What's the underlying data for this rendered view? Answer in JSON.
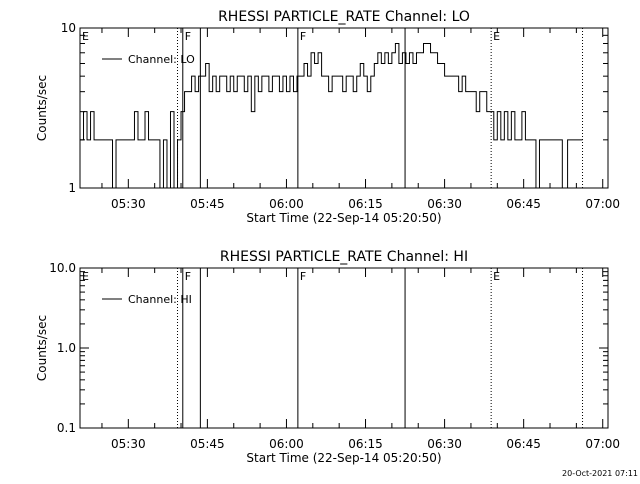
{
  "footer": {
    "timestamp": "20-Oct-2021 07:11"
  },
  "chart_data": [
    {
      "type": "line",
      "title": "RHESSI PARTICLE_RATE Channel: LO",
      "xlabel": "Start Time (22-Sep-14 05:20:50)",
      "ylabel": "Counts/sec",
      "x_unit": "time (HH:MM)",
      "xlim": [
        "05:20:50",
        "07:01:00"
      ],
      "ylim": [
        1,
        10
      ],
      "yscale": "log",
      "x_ticks": [
        "05:30",
        "05:45",
        "06:00",
        "06:15",
        "06:30",
        "06:45",
        "07:00"
      ],
      "y_ticks": [
        "1",
        "10"
      ],
      "legend": {
        "entries": [
          "Channel: LO"
        ],
        "placement": "top-left"
      },
      "grid": false,
      "markers": [
        {
          "label": "E",
          "time": "05:20:50",
          "style": "dotted"
        },
        {
          "label": "",
          "time": "05:39:20",
          "style": "dotted"
        },
        {
          "label": "F",
          "time": "05:40:20",
          "style": "solid"
        },
        {
          "label": "",
          "time": "05:43:40",
          "style": "solid"
        },
        {
          "label": "F",
          "time": "06:02:10",
          "style": "solid"
        },
        {
          "label": "",
          "time": "06:22:30",
          "style": "solid"
        },
        {
          "label": "E",
          "time": "06:38:50",
          "style": "dotted"
        },
        {
          "label": "",
          "time": "06:56:10",
          "style": "dotted"
        }
      ],
      "series": [
        {
          "name": "Channel: LO",
          "points": [
            [
              "05:20:50",
              2
            ],
            [
              "05:21:30",
              3
            ],
            [
              "05:22:10",
              2
            ],
            [
              "05:22:50",
              3
            ],
            [
              "05:23:30",
              2
            ],
            [
              "05:25:00",
              2
            ],
            [
              "05:26:20",
              2
            ],
            [
              "05:27:00",
              1
            ],
            [
              "05:27:40",
              2
            ],
            [
              "05:29:00",
              2
            ],
            [
              "05:30:30",
              2
            ],
            [
              "05:31:10",
              3
            ],
            [
              "05:31:50",
              2
            ],
            [
              "05:32:30",
              2
            ],
            [
              "05:33:10",
              3
            ],
            [
              "05:33:50",
              2
            ],
            [
              "05:35:20",
              2
            ],
            [
              "05:36:00",
              1
            ],
            [
              "05:36:40",
              2
            ],
            [
              "05:37:20",
              1
            ],
            [
              "05:38:00",
              3
            ],
            [
              "05:38:40",
              1
            ],
            [
              "05:39:20",
              2
            ],
            [
              "05:40:00",
              3
            ],
            [
              "05:40:40",
              4
            ],
            [
              "05:41:20",
              4
            ],
            [
              "05:42:00",
              5
            ],
            [
              "05:42:40",
              4
            ],
            [
              "05:43:20",
              5
            ],
            [
              "05:44:00",
              5
            ],
            [
              "05:44:40",
              6
            ],
            [
              "05:45:20",
              4
            ],
            [
              "05:46:00",
              5
            ],
            [
              "05:46:40",
              4
            ],
            [
              "05:47:20",
              5
            ],
            [
              "05:48:00",
              5
            ],
            [
              "05:48:40",
              4
            ],
            [
              "05:49:20",
              5
            ],
            [
              "05:50:00",
              4
            ],
            [
              "05:50:40",
              5
            ],
            [
              "05:51:20",
              5
            ],
            [
              "05:52:00",
              4
            ],
            [
              "05:52:40",
              5
            ],
            [
              "05:53:20",
              3
            ],
            [
              "05:54:00",
              5
            ],
            [
              "05:54:40",
              4
            ],
            [
              "05:55:20",
              5
            ],
            [
              "05:56:00",
              5
            ],
            [
              "05:56:40",
              4
            ],
            [
              "05:57:20",
              5
            ],
            [
              "05:58:00",
              5
            ],
            [
              "05:58:40",
              4
            ],
            [
              "05:59:20",
              5
            ],
            [
              "06:00:00",
              4
            ],
            [
              "06:00:40",
              5
            ],
            [
              "06:01:20",
              4
            ],
            [
              "06:02:00",
              5
            ],
            [
              "06:02:40",
              5
            ],
            [
              "06:03:20",
              6
            ],
            [
              "06:04:00",
              5
            ],
            [
              "06:04:40",
              7
            ],
            [
              "06:05:20",
              6
            ],
            [
              "06:06:00",
              7
            ],
            [
              "06:06:40",
              5
            ],
            [
              "06:07:20",
              5
            ],
            [
              "06:08:00",
              4
            ],
            [
              "06:08:40",
              5
            ],
            [
              "06:09:20",
              5
            ],
            [
              "06:10:00",
              5
            ],
            [
              "06:10:40",
              4
            ],
            [
              "06:11:20",
              5
            ],
            [
              "06:12:00",
              5
            ],
            [
              "06:12:40",
              4
            ],
            [
              "06:13:20",
              5
            ],
            [
              "06:14:00",
              6
            ],
            [
              "06:14:40",
              5
            ],
            [
              "06:15:20",
              4
            ],
            [
              "06:16:00",
              5
            ],
            [
              "06:16:40",
              6
            ],
            [
              "06:17:20",
              7
            ],
            [
              "06:18:00",
              6
            ],
            [
              "06:18:40",
              7
            ],
            [
              "06:19:20",
              6
            ],
            [
              "06:20:00",
              7
            ],
            [
              "06:20:40",
              8
            ],
            [
              "06:21:20",
              6
            ],
            [
              "06:22:00",
              7
            ],
            [
              "06:22:40",
              6
            ],
            [
              "06:23:20",
              7
            ],
            [
              "06:24:00",
              6
            ],
            [
              "06:24:40",
              7
            ],
            [
              "06:25:20",
              7
            ],
            [
              "06:26:00",
              8
            ],
            [
              "06:26:40",
              8
            ],
            [
              "06:27:20",
              7
            ],
            [
              "06:28:00",
              7
            ],
            [
              "06:28:40",
              6
            ],
            [
              "06:29:20",
              6
            ],
            [
              "06:30:00",
              5
            ],
            [
              "06:30:40",
              5
            ],
            [
              "06:31:20",
              5
            ],
            [
              "06:32:00",
              5
            ],
            [
              "06:32:40",
              4
            ],
            [
              "06:33:20",
              5
            ],
            [
              "06:34:00",
              4
            ],
            [
              "06:34:40",
              4
            ],
            [
              "06:35:20",
              4
            ],
            [
              "06:36:00",
              3
            ],
            [
              "06:36:40",
              4
            ],
            [
              "06:37:20",
              4
            ],
            [
              "06:38:00",
              3
            ],
            [
              "06:38:40",
              3
            ],
            [
              "06:39:20",
              2
            ],
            [
              "06:40:00",
              3
            ],
            [
              "06:40:40",
              2
            ],
            [
              "06:41:20",
              3
            ],
            [
              "06:42:00",
              2
            ],
            [
              "06:42:40",
              3
            ],
            [
              "06:43:20",
              2
            ],
            [
              "06:44:00",
              2
            ],
            [
              "06:44:40",
              3
            ],
            [
              "06:45:20",
              2
            ],
            [
              "06:46:00",
              2
            ],
            [
              "06:46:40",
              2
            ],
            [
              "06:47:20",
              1
            ],
            [
              "06:48:00",
              2
            ],
            [
              "06:49:00",
              2
            ],
            [
              "06:50:00",
              2
            ],
            [
              "06:51:00",
              2
            ],
            [
              "06:52:20",
              1
            ],
            [
              "06:53:20",
              2
            ],
            [
              "06:56:10",
              2
            ]
          ]
        }
      ]
    },
    {
      "type": "line",
      "title": "RHESSI PARTICLE_RATE Channel: HI",
      "xlabel": "Start Time (22-Sep-14 05:20:50)",
      "ylabel": "Counts/sec",
      "x_unit": "time (HH:MM)",
      "xlim": [
        "05:20:50",
        "07:01:00"
      ],
      "ylim": [
        0.1,
        10.0
      ],
      "yscale": "log",
      "x_ticks": [
        "05:30",
        "05:45",
        "06:00",
        "06:15",
        "06:30",
        "06:45",
        "07:00"
      ],
      "y_ticks": [
        "0.1",
        "1.0",
        "10.0"
      ],
      "legend": {
        "entries": [
          "Channel: HI"
        ],
        "placement": "top-left"
      },
      "grid": false,
      "markers": [
        {
          "label": "E",
          "time": "05:20:50",
          "style": "dotted"
        },
        {
          "label": "",
          "time": "05:39:20",
          "style": "dotted"
        },
        {
          "label": "F",
          "time": "05:40:20",
          "style": "solid"
        },
        {
          "label": "",
          "time": "05:43:40",
          "style": "solid"
        },
        {
          "label": "F",
          "time": "06:02:10",
          "style": "solid"
        },
        {
          "label": "",
          "time": "06:22:30",
          "style": "solid"
        },
        {
          "label": "E",
          "time": "06:38:50",
          "style": "dotted"
        },
        {
          "label": "",
          "time": "06:56:10",
          "style": "dotted"
        }
      ],
      "series": [
        {
          "name": "Channel: HI",
          "points": []
        }
      ]
    }
  ]
}
